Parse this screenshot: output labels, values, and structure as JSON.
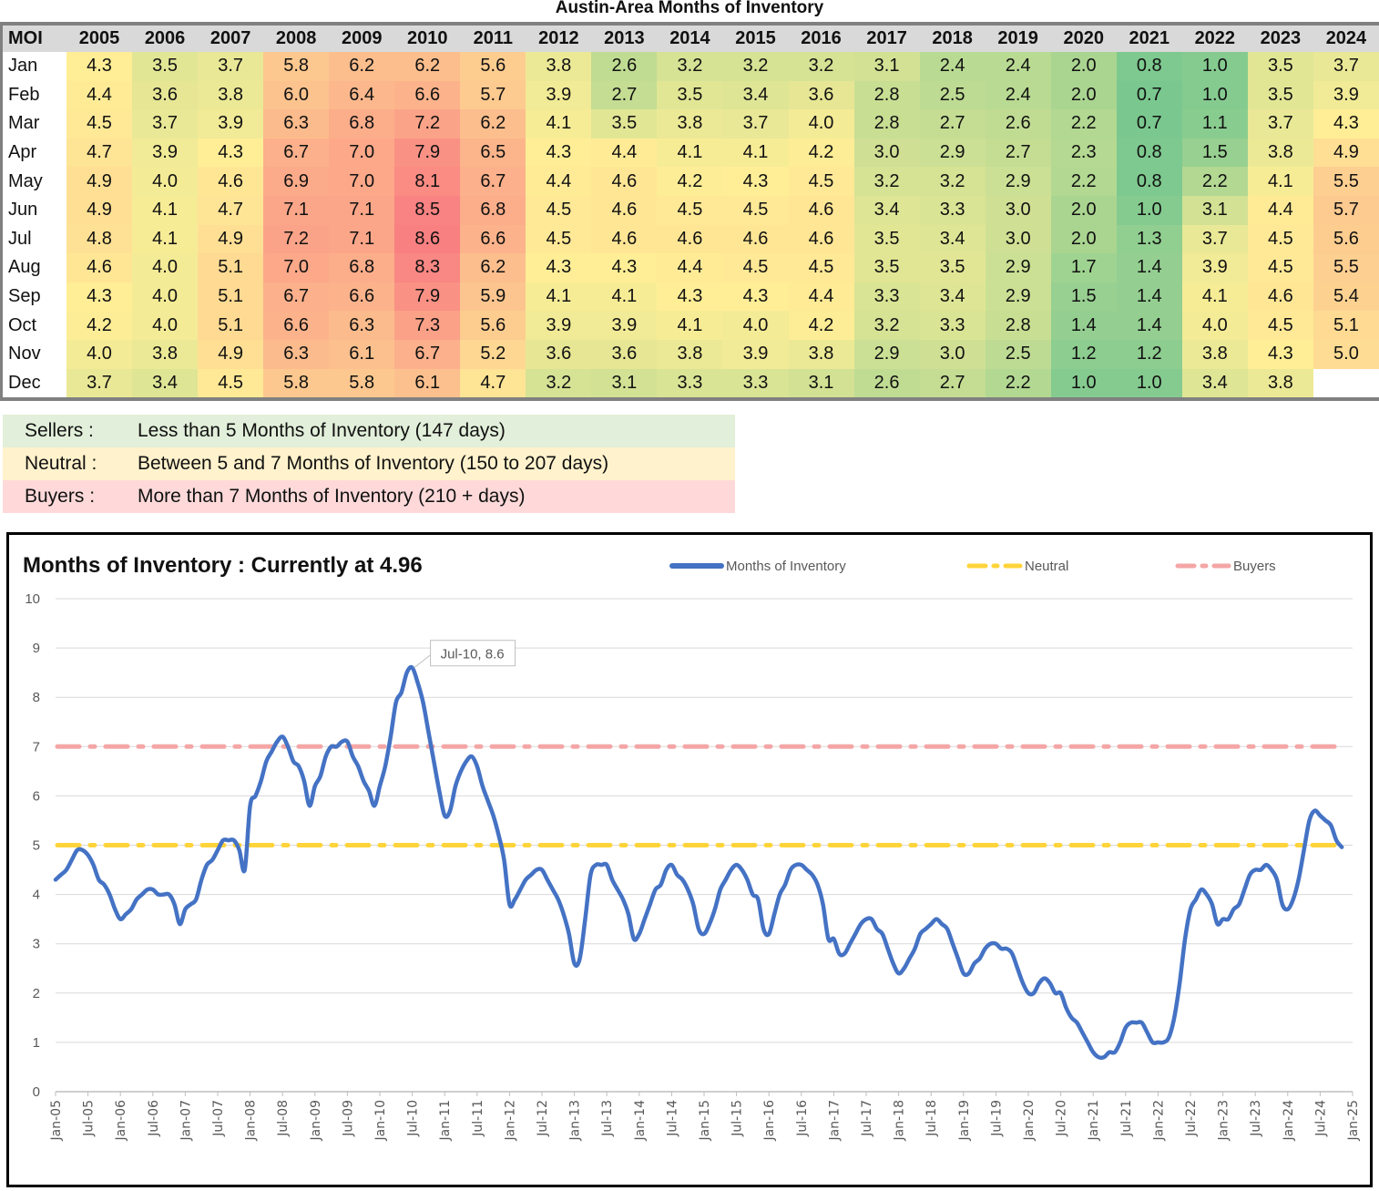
{
  "table": {
    "title": "Austin-Area Months of Inventory",
    "corner_label": "MOI",
    "years": [
      "2005",
      "2006",
      "2007",
      "2008",
      "2009",
      "2010",
      "2011",
      "2012",
      "2013",
      "2014",
      "2015",
      "2016",
      "2017",
      "2018",
      "2019",
      "2020",
      "2021",
      "2022",
      "2023",
      "2024"
    ],
    "rows": [
      {
        "month": "Jan",
        "values": [
          "4.3",
          "3.5",
          "3.7",
          "5.8",
          "6.2",
          "6.2",
          "5.6",
          "3.8",
          "2.6",
          "3.2",
          "3.2",
          "3.2",
          "3.1",
          "2.4",
          "2.4",
          "2.0",
          "0.8",
          "1.0",
          "3.5",
          "3.7"
        ]
      },
      {
        "month": "Feb",
        "values": [
          "4.4",
          "3.6",
          "3.8",
          "6.0",
          "6.4",
          "6.6",
          "5.7",
          "3.9",
          "2.7",
          "3.5",
          "3.4",
          "3.6",
          "2.8",
          "2.5",
          "2.4",
          "2.0",
          "0.7",
          "1.0",
          "3.5",
          "3.9"
        ]
      },
      {
        "month": "Mar",
        "values": [
          "4.5",
          "3.7",
          "3.9",
          "6.3",
          "6.8",
          "7.2",
          "6.2",
          "4.1",
          "3.5",
          "3.8",
          "3.7",
          "4.0",
          "2.8",
          "2.7",
          "2.6",
          "2.2",
          "0.7",
          "1.1",
          "3.7",
          "4.3"
        ]
      },
      {
        "month": "Apr",
        "values": [
          "4.7",
          "3.9",
          "4.3",
          "6.7",
          "7.0",
          "7.9",
          "6.5",
          "4.3",
          "4.4",
          "4.1",
          "4.1",
          "4.2",
          "3.0",
          "2.9",
          "2.7",
          "2.3",
          "0.8",
          "1.5",
          "3.8",
          "4.9"
        ]
      },
      {
        "month": "May",
        "values": [
          "4.9",
          "4.0",
          "4.6",
          "6.9",
          "7.0",
          "8.1",
          "6.7",
          "4.4",
          "4.6",
          "4.2",
          "4.3",
          "4.5",
          "3.2",
          "3.2",
          "2.9",
          "2.2",
          "0.8",
          "2.2",
          "4.1",
          "5.5"
        ]
      },
      {
        "month": "Jun",
        "values": [
          "4.9",
          "4.1",
          "4.7",
          "7.1",
          "7.1",
          "8.5",
          "6.8",
          "4.5",
          "4.6",
          "4.5",
          "4.5",
          "4.6",
          "3.4",
          "3.3",
          "3.0",
          "2.0",
          "1.0",
          "3.1",
          "4.4",
          "5.7"
        ]
      },
      {
        "month": "Jul",
        "values": [
          "4.8",
          "4.1",
          "4.9",
          "7.2",
          "7.1",
          "8.6",
          "6.6",
          "4.5",
          "4.6",
          "4.6",
          "4.6",
          "4.6",
          "3.5",
          "3.4",
          "3.0",
          "2.0",
          "1.3",
          "3.7",
          "4.5",
          "5.6"
        ]
      },
      {
        "month": "Aug",
        "values": [
          "4.6",
          "4.0",
          "5.1",
          "7.0",
          "6.8",
          "8.3",
          "6.2",
          "4.3",
          "4.3",
          "4.4",
          "4.5",
          "4.5",
          "3.5",
          "3.5",
          "2.9",
          "1.7",
          "1.4",
          "3.9",
          "4.5",
          "5.5"
        ]
      },
      {
        "month": "Sep",
        "values": [
          "4.3",
          "4.0",
          "5.1",
          "6.7",
          "6.6",
          "7.9",
          "5.9",
          "4.1",
          "4.1",
          "4.3",
          "4.3",
          "4.4",
          "3.3",
          "3.4",
          "2.9",
          "1.5",
          "1.4",
          "4.1",
          "4.6",
          "5.4"
        ]
      },
      {
        "month": "Oct",
        "values": [
          "4.2",
          "4.0",
          "5.1",
          "6.6",
          "6.3",
          "7.3",
          "5.6",
          "3.9",
          "3.9",
          "4.1",
          "4.0",
          "4.2",
          "3.2",
          "3.3",
          "2.8",
          "1.4",
          "1.4",
          "4.0",
          "4.5",
          "5.1"
        ]
      },
      {
        "month": "Nov",
        "values": [
          "4.0",
          "3.8",
          "4.9",
          "6.3",
          "6.1",
          "6.7",
          "5.2",
          "3.6",
          "3.6",
          "3.8",
          "3.9",
          "3.8",
          "2.9",
          "3.0",
          "2.5",
          "1.2",
          "1.2",
          "3.8",
          "4.3",
          "5.0"
        ]
      },
      {
        "month": "Dec",
        "values": [
          "3.7",
          "3.4",
          "4.5",
          "5.8",
          "5.8",
          "6.1",
          "4.7",
          "3.2",
          "3.1",
          "3.3",
          "3.3",
          "3.1",
          "2.6",
          "2.7",
          "2.2",
          "1.0",
          "1.0",
          "3.4",
          "3.8",
          ""
        ]
      }
    ],
    "colors": {
      "low": "#63be7b",
      "mid": "#ffeb84",
      "high": "#f8696b"
    }
  },
  "legend_table": [
    {
      "label": "Sellers :",
      "desc": "Less than 5 Months of Inventory (147 days)",
      "color": "#e2efda"
    },
    {
      "label": "Neutral :",
      "desc": "Between 5 and 7 Months of Inventory (150 to 207 days)",
      "color": "#fff2cc"
    },
    {
      "label": "Buyers :",
      "desc": "More than 7 Months of Inventory (210 + days)",
      "color": "#ffd9d9"
    }
  ],
  "chart_data": {
    "type": "line",
    "title": "Months of Inventory : Currently at 4.96",
    "xlabel": "",
    "ylabel": "",
    "ylim": [
      0,
      10
    ],
    "yticks": [
      0,
      1,
      2,
      3,
      4,
      5,
      6,
      7,
      8,
      9,
      10
    ],
    "grid": true,
    "legend_position": "top-right",
    "x_start": "Jan-05",
    "x_tick_labels": [
      "Jan-05",
      "Jul-05",
      "Jan-06",
      "Jul-06",
      "Jan-07",
      "Jul-07",
      "Jan-08",
      "Jul-08",
      "Jan-09",
      "Jul-09",
      "Jan-10",
      "Jul-10",
      "Jan-11",
      "Jul-11",
      "Jan-12",
      "Jul-12",
      "Jan-13",
      "Jul-13",
      "Jan-14",
      "Jul-14",
      "Jan-15",
      "Jul-15",
      "Jan-16",
      "Jul-16",
      "Jan-17",
      "Jul-17",
      "Jan-18",
      "Jul-18",
      "Jan-19",
      "Jul-19",
      "Jan-20",
      "Jul-20",
      "Jan-21",
      "Jul-21",
      "Jan-22",
      "Jul-22",
      "Jan-23",
      "Jul-23",
      "Jan-24",
      "Jul-24",
      "Jan-25"
    ],
    "series": [
      {
        "name": "Months of Inventory",
        "color": "#4472c4",
        "style": "solid",
        "values": [
          4.3,
          4.4,
          4.5,
          4.7,
          4.9,
          4.9,
          4.8,
          4.6,
          4.3,
          4.2,
          4.0,
          3.7,
          3.5,
          3.6,
          3.7,
          3.9,
          4.0,
          4.1,
          4.1,
          4.0,
          4.0,
          4.0,
          3.8,
          3.4,
          3.7,
          3.8,
          3.9,
          4.3,
          4.6,
          4.7,
          4.9,
          5.1,
          5.1,
          5.1,
          4.9,
          4.5,
          5.8,
          6.0,
          6.3,
          6.7,
          6.9,
          7.1,
          7.2,
          7.0,
          6.7,
          6.6,
          6.3,
          5.8,
          6.2,
          6.4,
          6.8,
          7.0,
          7.0,
          7.1,
          7.1,
          6.8,
          6.6,
          6.3,
          6.1,
          5.8,
          6.2,
          6.6,
          7.2,
          7.9,
          8.1,
          8.5,
          8.6,
          8.3,
          7.9,
          7.3,
          6.7,
          6.1,
          5.6,
          5.7,
          6.2,
          6.5,
          6.7,
          6.8,
          6.6,
          6.2,
          5.9,
          5.6,
          5.2,
          4.7,
          3.8,
          3.9,
          4.1,
          4.3,
          4.4,
          4.5,
          4.5,
          4.3,
          4.1,
          3.9,
          3.6,
          3.2,
          2.6,
          2.7,
          3.5,
          4.4,
          4.6,
          4.6,
          4.6,
          4.3,
          4.1,
          3.9,
          3.6,
          3.1,
          3.2,
          3.5,
          3.8,
          4.1,
          4.2,
          4.5,
          4.6,
          4.4,
          4.3,
          4.1,
          3.8,
          3.3,
          3.2,
          3.4,
          3.7,
          4.1,
          4.3,
          4.5,
          4.6,
          4.5,
          4.3,
          4.0,
          3.9,
          3.3,
          3.2,
          3.6,
          4.0,
          4.2,
          4.5,
          4.6,
          4.6,
          4.5,
          4.4,
          4.2,
          3.8,
          3.1,
          3.1,
          2.8,
          2.8,
          3.0,
          3.2,
          3.4,
          3.5,
          3.5,
          3.3,
          3.2,
          2.9,
          2.6,
          2.4,
          2.5,
          2.7,
          2.9,
          3.2,
          3.3,
          3.4,
          3.5,
          3.4,
          3.3,
          3.0,
          2.7,
          2.4,
          2.4,
          2.6,
          2.7,
          2.9,
          3.0,
          3.0,
          2.9,
          2.9,
          2.8,
          2.5,
          2.2,
          2.0,
          2.0,
          2.2,
          2.3,
          2.2,
          2.0,
          2.0,
          1.7,
          1.5,
          1.4,
          1.2,
          1.0,
          0.8,
          0.7,
          0.7,
          0.8,
          0.8,
          1.0,
          1.3,
          1.4,
          1.4,
          1.4,
          1.2,
          1.0,
          1.0,
          1.0,
          1.1,
          1.5,
          2.2,
          3.1,
          3.7,
          3.9,
          4.1,
          4.0,
          3.8,
          3.4,
          3.5,
          3.5,
          3.7,
          3.8,
          4.1,
          4.4,
          4.5,
          4.5,
          4.6,
          4.5,
          4.3,
          3.8,
          3.7,
          3.9,
          4.3,
          4.9,
          5.5,
          5.7,
          5.6,
          5.5,
          5.4,
          5.1,
          4.96
        ]
      },
      {
        "name": "Neutral",
        "color": "#ffd43b",
        "style": "dash-dot",
        "value": 5
      },
      {
        "name": "Buyers",
        "color": "#f4a6a6",
        "style": "dash-dot",
        "value": 7
      }
    ],
    "annotations": [
      {
        "text": "Jul-10, 8.6",
        "x": "Jul-10",
        "y": 8.6
      }
    ]
  }
}
